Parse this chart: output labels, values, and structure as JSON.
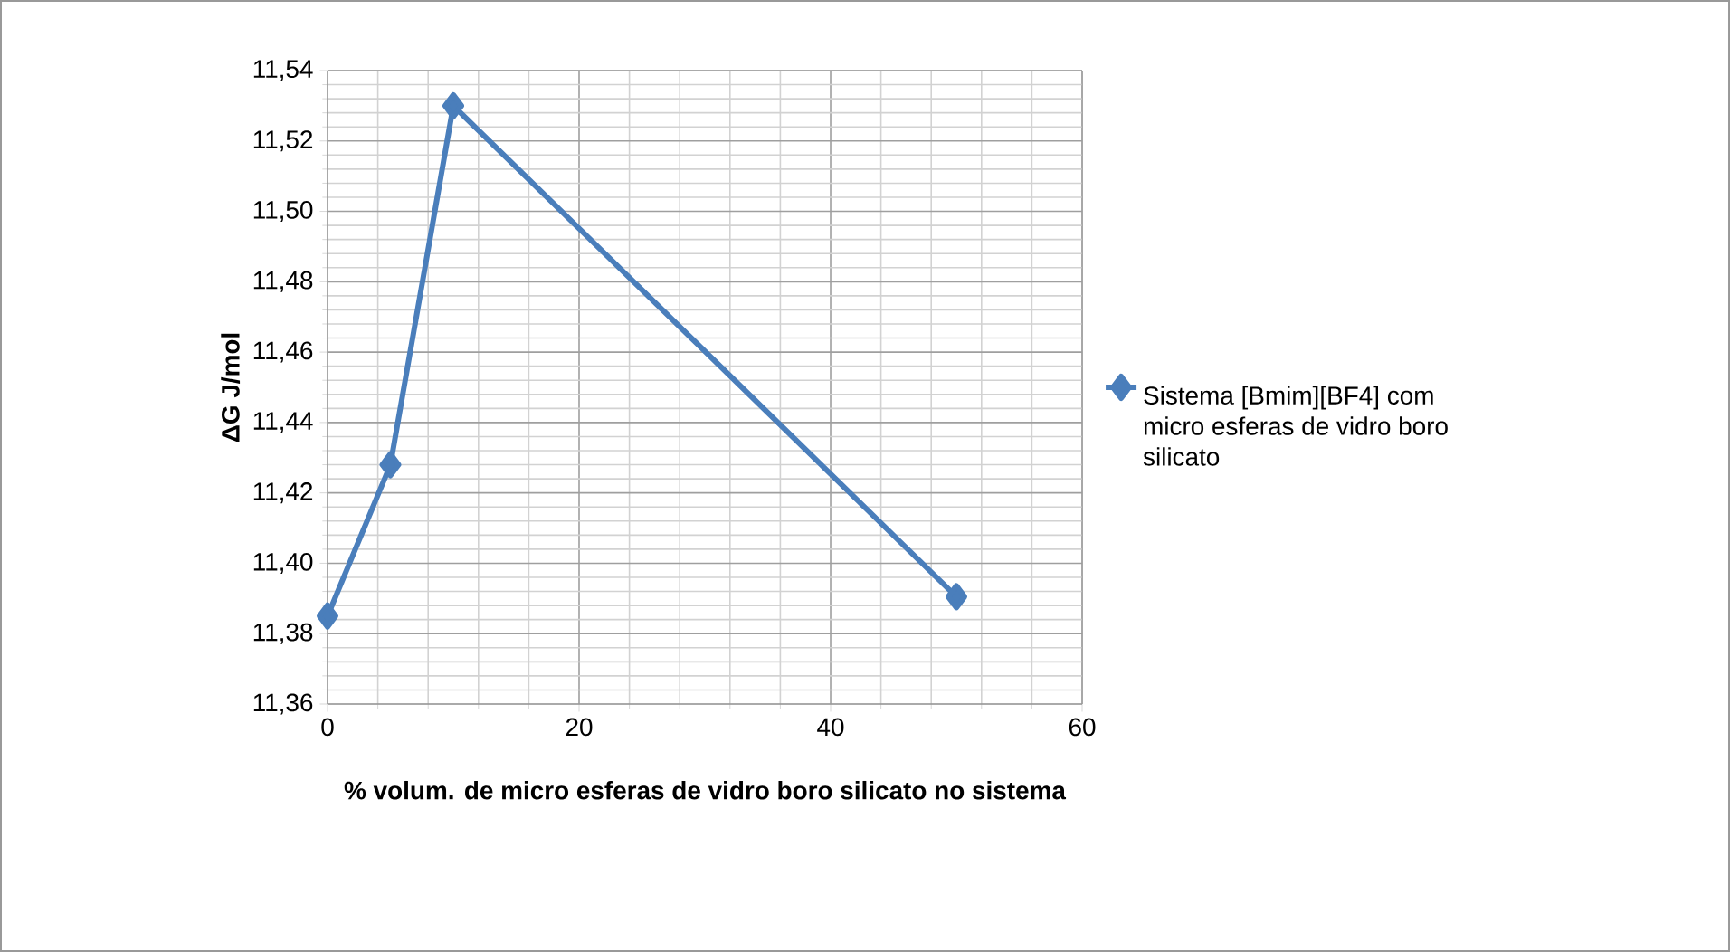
{
  "chart_data": {
    "type": "line",
    "xlabel": "% volum. de micro esferas de vidro boro silicato no sistema",
    "ylabel": "ΔG J/mol",
    "x": [
      0,
      5,
      10,
      50
    ],
    "series": [
      {
        "name": "Sistema [Bmim][BF4] com micro esferas de vidro boro silicato",
        "color": "#4a7ebb",
        "values": [
          11.385,
          11.428,
          11.53,
          11.3905
        ]
      }
    ],
    "xlim": [
      0,
      60
    ],
    "xticks": [
      0,
      20,
      40,
      60
    ],
    "ylim": [
      11.36,
      11.54
    ],
    "yticks": [
      {
        "value": 11.36,
        "label": "11,36"
      },
      {
        "value": 11.38,
        "label": "11,38"
      },
      {
        "value": 11.4,
        "label": "11,40"
      },
      {
        "value": 11.42,
        "label": "11,42"
      },
      {
        "value": 11.44,
        "label": "11,44"
      },
      {
        "value": 11.46,
        "label": "11,46"
      },
      {
        "value": 11.48,
        "label": "11,48"
      },
      {
        "value": 11.5,
        "label": "11,50"
      },
      {
        "value": 11.52,
        "label": "11,52"
      },
      {
        "value": 11.54,
        "label": "11,54"
      }
    ],
    "grid": true,
    "legend": "right",
    "marker": "diamond",
    "line_style": "solid"
  }
}
